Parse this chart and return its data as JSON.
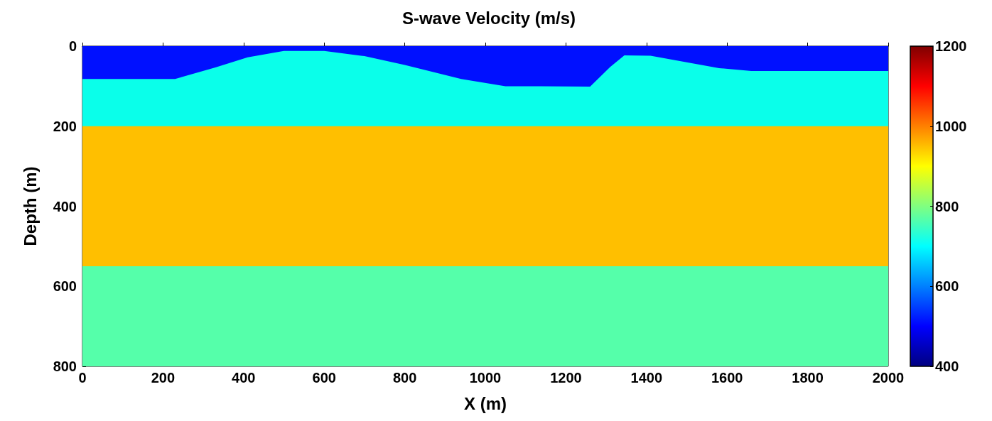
{
  "chart_data": {
    "type": "area",
    "title": "S-wave Velocity (m/s)",
    "xlabel": "X (m)",
    "ylabel": "Depth (m)",
    "stacked": true,
    "grid": false,
    "x": [
      0,
      230,
      330,
      410,
      500,
      600,
      700,
      800,
      940,
      1050,
      1260,
      1310,
      1345,
      1410,
      1580,
      1660,
      2000
    ],
    "series": [
      {
        "color": "#0010ff",
        "values": [
          82,
          82,
          53,
          28,
          12,
          12,
          25,
          47,
          82,
          100,
          101,
          52,
          23,
          24,
          55,
          62,
          62
        ]
      },
      {
        "color": "#0affea",
        "values": [
          118,
          118,
          147,
          172,
          188,
          188,
          175,
          153,
          118,
          100,
          99,
          148,
          177,
          176,
          145,
          138,
          138
        ]
      },
      {
        "color": "#ffbf00",
        "values": [
          350,
          350,
          350,
          350,
          350,
          350,
          350,
          350,
          350,
          350,
          350,
          350,
          350,
          350,
          350,
          350,
          350
        ]
      },
      {
        "color": "#55ffaa",
        "values": [
          250,
          250,
          250,
          250,
          250,
          250,
          250,
          250,
          250,
          250,
          250,
          250,
          250,
          250,
          250,
          250,
          250
        ]
      }
    ],
    "xlim": [
      0,
      2000
    ],
    "xticks": [
      0,
      200,
      400,
      600,
      800,
      1000,
      1200,
      1400,
      1600,
      1800,
      2000
    ],
    "ylim": [
      800,
      0
    ],
    "yticks": [
      0,
      200,
      400,
      600,
      800
    ],
    "clim": [
      400,
      1200
    ],
    "cticks": [
      400,
      600,
      800,
      1000,
      1200
    ]
  }
}
